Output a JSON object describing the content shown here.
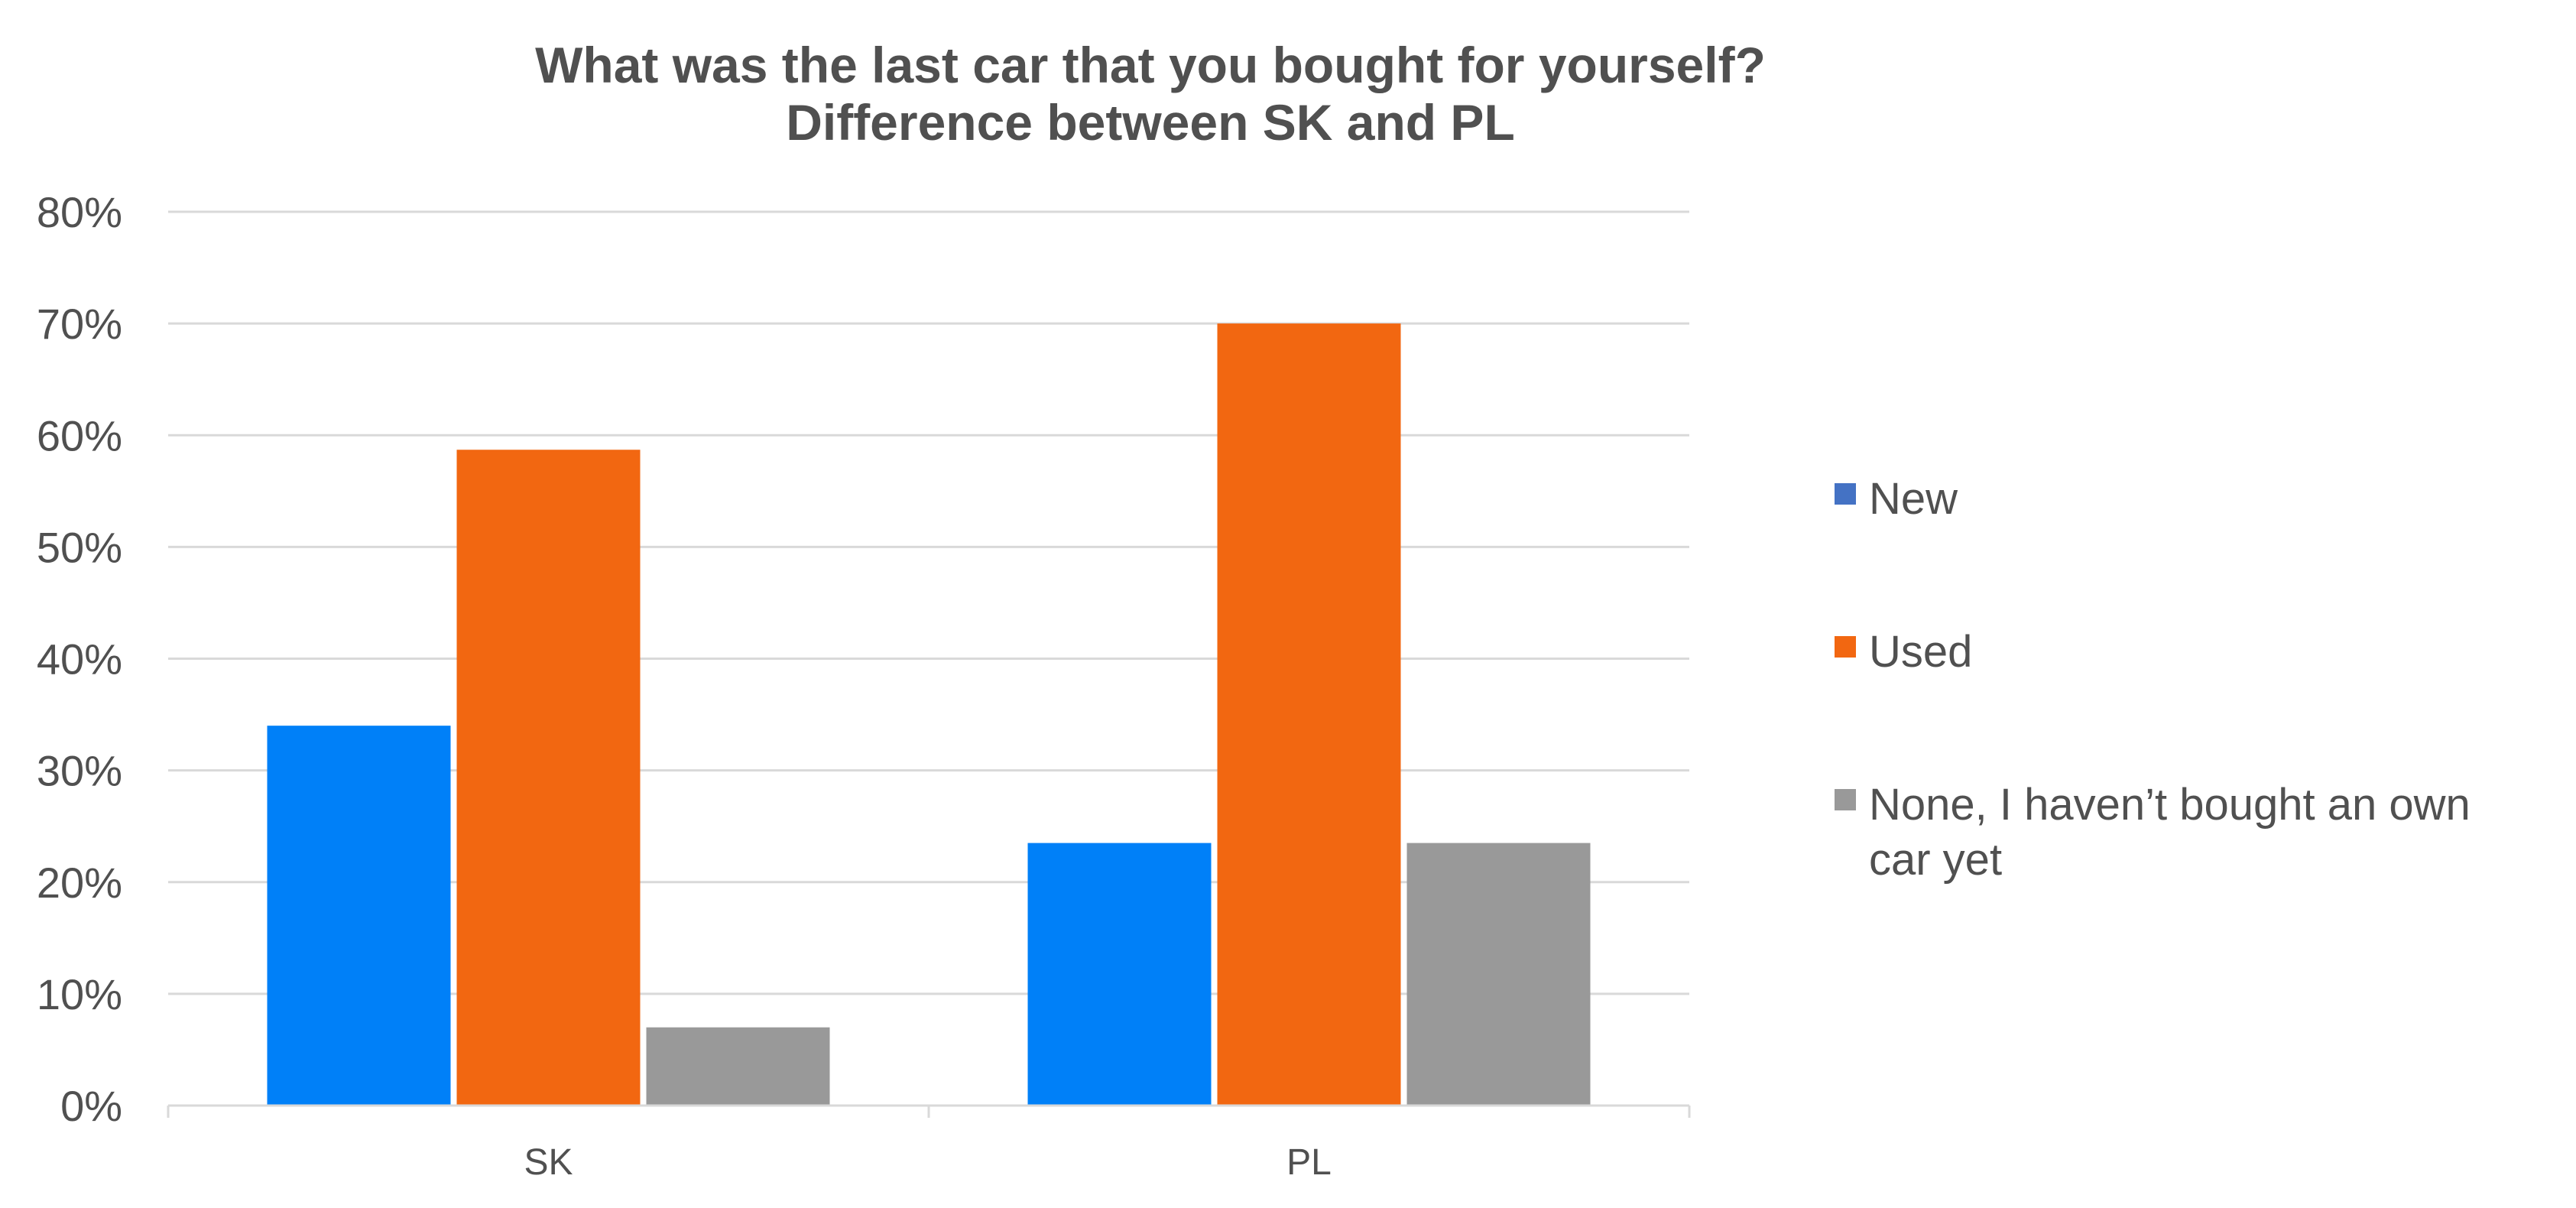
{
  "chart_data": {
    "type": "bar",
    "title": [
      "What was the last car that you bought for yourself?",
      "Difference between SK and PL"
    ],
    "xlabel": "",
    "ylabel": "",
    "categories": [
      "SK",
      "PL"
    ],
    "ylim": [
      0,
      80
    ],
    "yticks": [
      "0%",
      "10%",
      "20%",
      "30%",
      "40%",
      "50%",
      "60%",
      "70%",
      "80%"
    ],
    "grid": true,
    "legend_position": "right",
    "series": [
      {
        "name": "New",
        "values": [
          34,
          23.5
        ],
        "color": "#0080F8",
        "legend_color": "#4472C4"
      },
      {
        "name": "Used",
        "values": [
          58.7,
          70
        ],
        "color": "#F26711",
        "legend_color": "#F26711"
      },
      {
        "name": "None, I haven’t bought an own car yet",
        "legend_lines": [
          "None, I haven’t bought an own",
          "car yet"
        ],
        "values": [
          7,
          23.5
        ],
        "color": "#999999",
        "legend_color": "#999999"
      }
    ]
  }
}
